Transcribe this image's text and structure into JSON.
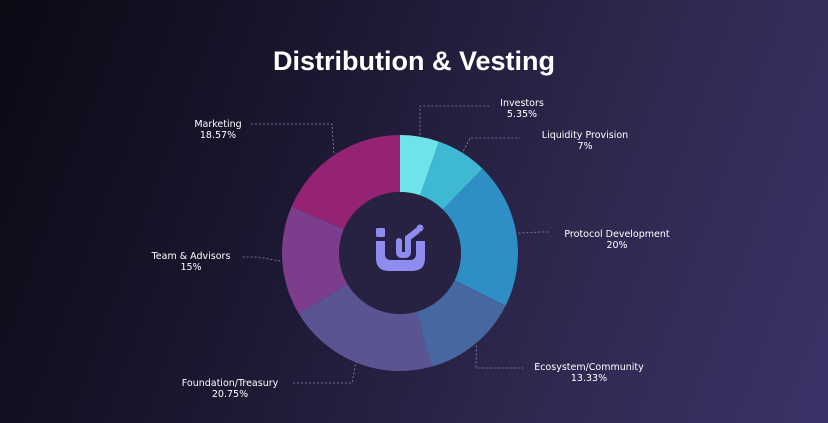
{
  "chart_data": {
    "type": "pie",
    "title": "Distribution & Vesting",
    "donut": true,
    "slices": [
      {
        "label": "Investors",
        "value_label": "5.35%",
        "value": 5.35,
        "color": "#6fe3ec"
      },
      {
        "label": "Liquidity Provision",
        "value_label": "7%",
        "value": 7,
        "color": "#3fb8d4"
      },
      {
        "label": "Protocol Development",
        "value_label": "20%",
        "value": 20,
        "color": "#2e8fc4"
      },
      {
        "label": "Ecosystem/Community",
        "value_label": "13.33%",
        "value": 13.33,
        "color": "#46679f"
      },
      {
        "label": "Foundation/Treasury",
        "value_label": "20.75%",
        "value": 20.75,
        "color": "#5b5492"
      },
      {
        "label": "Team & Advisors",
        "value_label": "15%",
        "value": 15,
        "color": "#7b3d8c"
      },
      {
        "label": "Marketing",
        "value_label": "18.57%",
        "value": 18.57,
        "color": "#952374"
      }
    ]
  },
  "center_logo": {
    "icon": "protocol-logo-icon",
    "color": "#8f8cf0"
  }
}
